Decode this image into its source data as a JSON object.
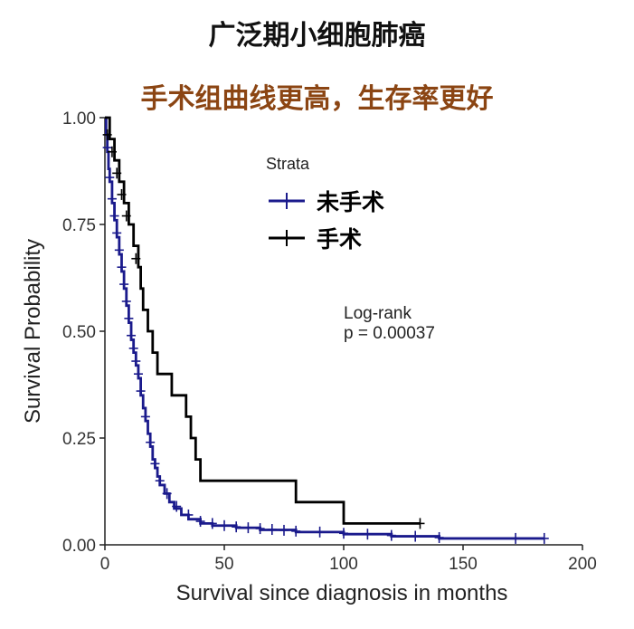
{
  "header": {
    "title": "广泛期小细胞肺癌",
    "subtitle": "手术组曲线更高，生存率更好"
  },
  "chart_data": {
    "type": "line",
    "step": true,
    "xlabel": "Survival since diagnosis in months",
    "ylabel": "Survival Probability",
    "xlim": [
      0,
      200
    ],
    "ylim": [
      0,
      1
    ],
    "x_ticks": [
      "0",
      "50",
      "100",
      "150",
      "200"
    ],
    "y_ticks": [
      "0.00",
      "0.25",
      "0.50",
      "0.75",
      "1.00"
    ],
    "grid": false,
    "legend": {
      "title": "Strata",
      "position": "top-center"
    },
    "annotation": {
      "line1": "Log-rank",
      "line2": "p = 0.00037"
    },
    "series": [
      {
        "name": "未手术",
        "color": "#1a1a8c",
        "points": [
          [
            0,
            1.0
          ],
          [
            0.5,
            0.96
          ],
          [
            1,
            0.92
          ],
          [
            1.5,
            0.88
          ],
          [
            2,
            0.85
          ],
          [
            3,
            0.8
          ],
          [
            4,
            0.76
          ],
          [
            5,
            0.72
          ],
          [
            6,
            0.68
          ],
          [
            7,
            0.64
          ],
          [
            8,
            0.6
          ],
          [
            9,
            0.56
          ],
          [
            10,
            0.52
          ],
          [
            11,
            0.48
          ],
          [
            12,
            0.45
          ],
          [
            13,
            0.42
          ],
          [
            14,
            0.39
          ],
          [
            15,
            0.35
          ],
          [
            16,
            0.32
          ],
          [
            17,
            0.29
          ],
          [
            18,
            0.26
          ],
          [
            19,
            0.23
          ],
          [
            20,
            0.2
          ],
          [
            21,
            0.18
          ],
          [
            22,
            0.16
          ],
          [
            23,
            0.14
          ],
          [
            25,
            0.12
          ],
          [
            27,
            0.1
          ],
          [
            29,
            0.085
          ],
          [
            32,
            0.07
          ],
          [
            35,
            0.06
          ],
          [
            40,
            0.05
          ],
          [
            45,
            0.045
          ],
          [
            55,
            0.04
          ],
          [
            65,
            0.035
          ],
          [
            80,
            0.03
          ],
          [
            100,
            0.025
          ],
          [
            120,
            0.02
          ],
          [
            140,
            0.015
          ],
          [
            184,
            0.015
          ]
        ],
        "censors": [
          [
            1,
            0.93
          ],
          [
            2,
            0.86
          ],
          [
            3,
            0.81
          ],
          [
            4,
            0.77
          ],
          [
            5,
            0.73
          ],
          [
            6,
            0.69
          ],
          [
            7,
            0.65
          ],
          [
            8,
            0.61
          ],
          [
            9,
            0.57
          ],
          [
            10,
            0.53
          ],
          [
            11,
            0.49
          ],
          [
            12,
            0.46
          ],
          [
            13,
            0.43
          ],
          [
            14,
            0.4
          ],
          [
            15,
            0.36
          ],
          [
            17,
            0.3
          ],
          [
            19,
            0.24
          ],
          [
            21,
            0.19
          ],
          [
            23,
            0.15
          ],
          [
            26,
            0.12
          ],
          [
            30,
            0.09
          ],
          [
            35,
            0.07
          ],
          [
            40,
            0.055
          ],
          [
            45,
            0.05
          ],
          [
            50,
            0.045
          ],
          [
            55,
            0.042
          ],
          [
            60,
            0.04
          ],
          [
            65,
            0.038
          ],
          [
            70,
            0.036
          ],
          [
            75,
            0.034
          ],
          [
            80,
            0.032
          ],
          [
            90,
            0.03
          ],
          [
            100,
            0.027
          ],
          [
            110,
            0.025
          ],
          [
            120,
            0.022
          ],
          [
            130,
            0.02
          ],
          [
            140,
            0.017
          ],
          [
            172,
            0.015
          ],
          [
            184,
            0.015
          ]
        ]
      },
      {
        "name": "手术",
        "color": "#000000",
        "points": [
          [
            0,
            1.0
          ],
          [
            2,
            0.95
          ],
          [
            4,
            0.9
          ],
          [
            6,
            0.85
          ],
          [
            8,
            0.8
          ],
          [
            10,
            0.75
          ],
          [
            12,
            0.7
          ],
          [
            14,
            0.65
          ],
          [
            15,
            0.6
          ],
          [
            16,
            0.55
          ],
          [
            18,
            0.5
          ],
          [
            20,
            0.45
          ],
          [
            22,
            0.4
          ],
          [
            28,
            0.35
          ],
          [
            34,
            0.3
          ],
          [
            36,
            0.25
          ],
          [
            38,
            0.2
          ],
          [
            40,
            0.15
          ],
          [
            80,
            0.1
          ],
          [
            100,
            0.05
          ],
          [
            132,
            0.05
          ]
        ],
        "censors": [
          [
            1,
            0.96
          ],
          [
            3,
            0.92
          ],
          [
            5,
            0.87
          ],
          [
            7,
            0.82
          ],
          [
            9,
            0.77
          ],
          [
            13,
            0.67
          ],
          [
            132,
            0.05
          ]
        ]
      }
    ]
  }
}
